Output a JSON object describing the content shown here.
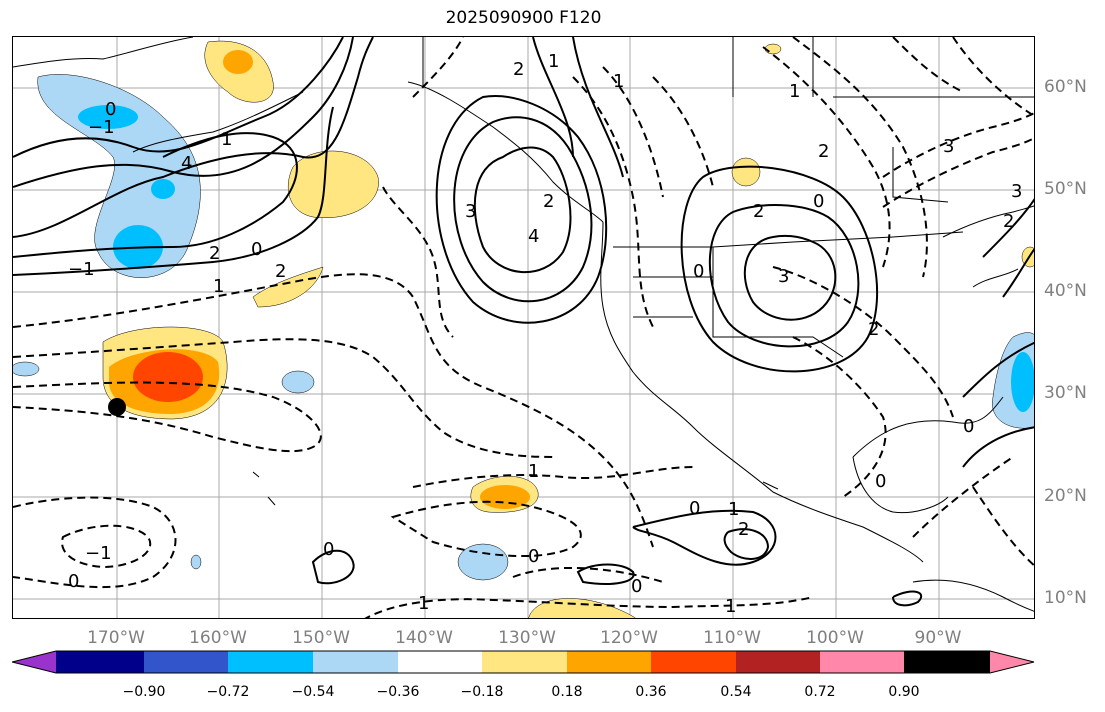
{
  "title": "2025090900 F120",
  "lat_labels": [
    "60°N",
    "50°N",
    "40°N",
    "30°N",
    "20°N",
    "10°N"
  ],
  "lon_labels": [
    "170°W",
    "160°W",
    "150°W",
    "140°W",
    "130°W",
    "120°W",
    "110°W",
    "100°W",
    "90°W"
  ],
  "colorbar": {
    "colors": [
      "#9933cc",
      "#00008b",
      "#3355cc",
      "#00bfff",
      "#add8f5",
      "#ffffff",
      "#ffe680",
      "#ffa500",
      "#ff4500",
      "#b22222",
      "#ff88aa"
    ],
    "tick_labels": [
      "−0.90",
      "−0.72",
      "−0.54",
      "−0.36",
      "−0.18",
      "0.18",
      "0.36",
      "0.54",
      "0.72",
      "0.90"
    ]
  },
  "contour_labels": [
    "2",
    "1",
    "0",
    "−1",
    "1",
    "4",
    "2",
    "0",
    "−1",
    "2",
    "1",
    "3",
    "4",
    "2",
    "1",
    "0",
    "2",
    "3",
    "1",
    "2",
    "3",
    "0",
    "−1",
    "0",
    "0",
    "1",
    "0",
    "2",
    "1",
    "0",
    "1",
    "0",
    "3",
    "2",
    "0",
    "2",
    "1",
    "0"
  ],
  "marker": "storm-center-dot"
}
